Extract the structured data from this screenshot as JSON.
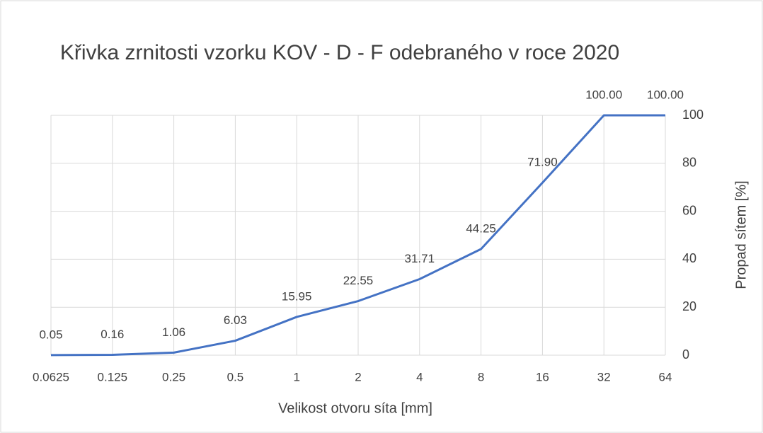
{
  "chart_data": {
    "type": "line",
    "title": "Křivka zrnitosti vzorku KOV - D - F odebraného v roce 2020",
    "x_label": "Velikost otvoru síta [mm]",
    "y_label": "Propad sítem [%]",
    "categories": [
      "0.0625",
      "0.125",
      "0.25",
      "0.5",
      "1",
      "2",
      "4",
      "8",
      "16",
      "32",
      "64"
    ],
    "values": [
      0.05,
      0.16,
      1.06,
      6.03,
      15.95,
      22.55,
      31.71,
      44.25,
      71.9,
      100,
      100
    ],
    "value_labels": [
      "0.05",
      "0.16",
      "1.06",
      "6.03",
      "15.95",
      "22.55",
      "31.71",
      "44.25",
      "71.90",
      "100.00",
      "100.00"
    ],
    "color": "#4472c4",
    "ylim": [
      0,
      100
    ],
    "yticks": [
      0,
      20,
      40,
      60,
      80,
      100
    ],
    "grid": true,
    "y_axis_side": "right"
  }
}
